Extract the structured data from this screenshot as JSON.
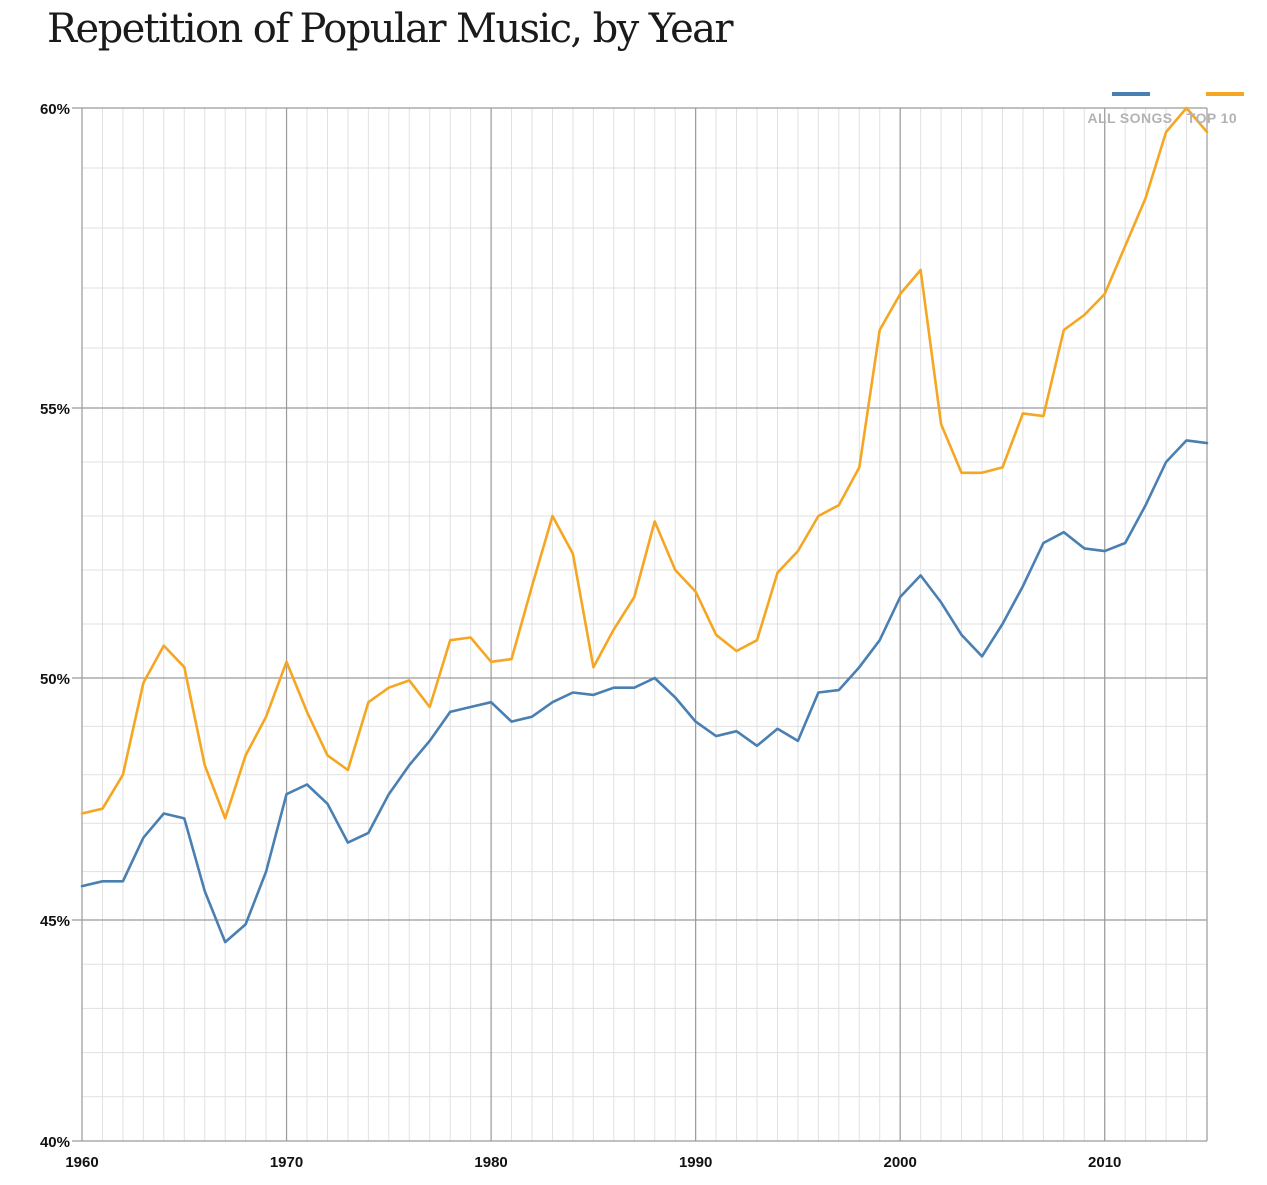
{
  "title": "Repetition of Popular Music, by Year",
  "chart_data": {
    "type": "line",
    "title": "Repetition of Popular Music, by Year",
    "xlabel": "",
    "ylabel": "",
    "xlim": [
      1960,
      2015
    ],
    "ylim": [
      40,
      60
    ],
    "y_axis_breaks": [
      40,
      45,
      50,
      55,
      60
    ],
    "x_ticks": [
      "1960",
      "1970",
      "1980",
      "1990",
      "2000",
      "2010"
    ],
    "y_ticks": [
      "40%",
      "45%",
      "50%",
      "55%",
      "60%"
    ],
    "grid": true,
    "legend_position": "top-right",
    "x": [
      1960,
      1961,
      1962,
      1963,
      1964,
      1965,
      1966,
      1967,
      1968,
      1969,
      1970,
      1971,
      1972,
      1973,
      1974,
      1975,
      1976,
      1977,
      1978,
      1979,
      1980,
      1981,
      1982,
      1983,
      1984,
      1985,
      1986,
      1987,
      1988,
      1989,
      1990,
      1991,
      1992,
      1993,
      1994,
      1995,
      1996,
      1997,
      1998,
      1999,
      2000,
      2001,
      2002,
      2003,
      2004,
      2005,
      2006,
      2007,
      2008,
      2009,
      2010,
      2011,
      2012,
      2013,
      2014,
      2015
    ],
    "series": [
      {
        "name": "ALL SONGS",
        "color": "#4a7fb2",
        "values": [
          45.7,
          45.8,
          45.8,
          46.7,
          47.2,
          47.1,
          45.6,
          44.5,
          44.9,
          46.0,
          47.6,
          47.8,
          47.4,
          46.6,
          46.8,
          47.6,
          48.2,
          48.7,
          49.3,
          49.4,
          49.5,
          49.1,
          49.2,
          49.5,
          49.7,
          49.65,
          49.8,
          49.8,
          50.0,
          49.6,
          49.1,
          48.8,
          48.9,
          48.6,
          48.95,
          48.7,
          49.7,
          49.75,
          50.2,
          50.7,
          51.5,
          51.9,
          51.4,
          50.8,
          50.4,
          51.0,
          51.7,
          52.5,
          52.7,
          52.4,
          52.35,
          52.5,
          53.2,
          54.0,
          54.4,
          54.35
        ]
      },
      {
        "name": "TOP 10",
        "color": "#f5a623",
        "values": [
          47.2,
          47.3,
          48.0,
          49.9,
          50.6,
          50.2,
          48.2,
          47.1,
          48.4,
          49.2,
          50.3,
          49.3,
          48.4,
          48.1,
          49.5,
          49.8,
          49.95,
          49.4,
          50.7,
          50.75,
          50.3,
          50.35,
          51.7,
          53.0,
          52.3,
          50.2,
          50.9,
          51.5,
          52.9,
          52.0,
          51.6,
          50.8,
          50.5,
          50.7,
          51.95,
          52.35,
          53.0,
          53.2,
          53.9,
          56.3,
          56.9,
          57.3,
          54.7,
          53.8,
          53.8,
          53.9,
          54.9,
          54.85,
          56.3,
          56.55,
          56.9,
          57.7,
          58.5,
          59.6,
          60.0,
          59.6
        ]
      }
    ]
  }
}
